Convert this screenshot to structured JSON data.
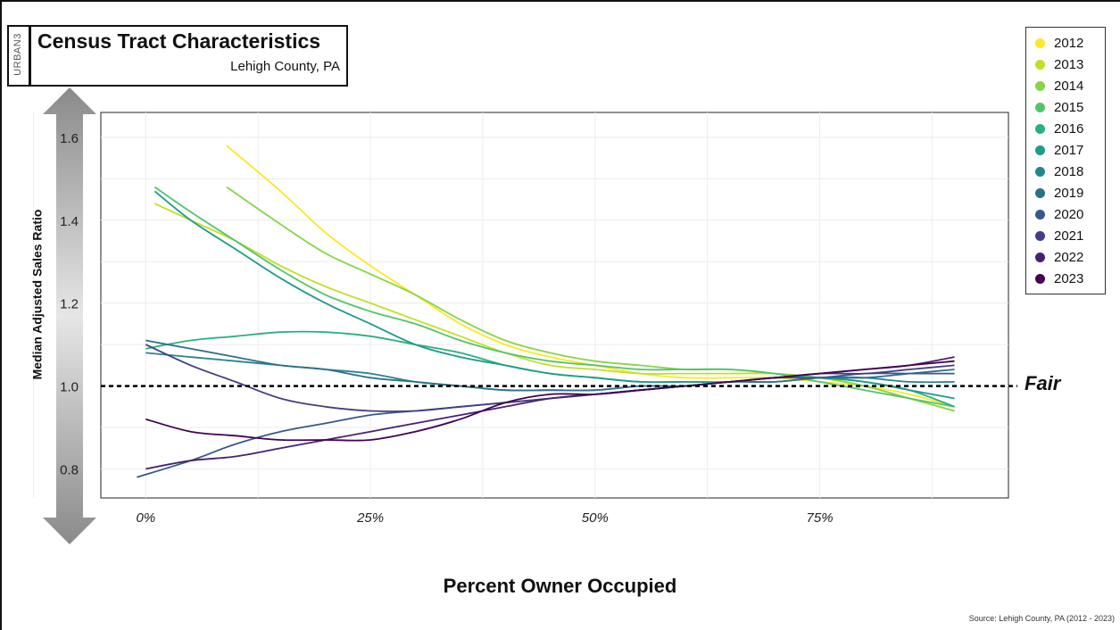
{
  "header": {
    "brand": "URBAN3",
    "title": "Census Tract Characteristics",
    "subtitle": "Lehigh County, PA"
  },
  "source": "Source: Lehigh County, PA (2012 - 2023)",
  "colors": {
    "2012": "#fde725",
    "2013": "#c2df23",
    "2014": "#86d549",
    "2015": "#52c569",
    "2016": "#2ab07f",
    "2017": "#1e9b8a",
    "2018": "#25858e",
    "2019": "#2d708e",
    "2020": "#38588c",
    "2021": "#433e85",
    "2022": "#482173",
    "2023": "#440154"
  },
  "chart_data": {
    "type": "line",
    "xlabel": "Percent Owner Occupied",
    "ylabel": "Median Adjusted Sales Ratio",
    "xlim": [
      -0.05,
      0.96
    ],
    "ylim": [
      0.73,
      1.66
    ],
    "xticks": [
      0,
      0.25,
      0.5,
      0.75
    ],
    "xtick_labels": [
      "0%",
      "25%",
      "50%",
      "75%"
    ],
    "yticks": [
      0.8,
      1.0,
      1.2,
      1.4,
      1.6
    ],
    "ytick_labels": [
      "0.8",
      "1.0",
      "1.2",
      "1.4",
      "1.6"
    ],
    "grid": true,
    "legend_position": "top-right",
    "reference_line": {
      "y": 1.0,
      "label": "Fair",
      "style": "dashed"
    },
    "series": [
      {
        "name": "2012",
        "x": [
          0.09,
          0.15,
          0.2,
          0.25,
          0.3,
          0.35,
          0.4,
          0.45,
          0.5,
          0.55,
          0.6,
          0.65,
          0.7,
          0.75,
          0.8,
          0.85,
          0.9
        ],
        "y": [
          1.58,
          1.47,
          1.37,
          1.29,
          1.22,
          1.15,
          1.1,
          1.07,
          1.05,
          1.03,
          1.02,
          1.02,
          1.02,
          1.01,
          1.0,
          0.98,
          0.95
        ]
      },
      {
        "name": "2013",
        "x": [
          0.01,
          0.05,
          0.1,
          0.15,
          0.2,
          0.25,
          0.3,
          0.35,
          0.4,
          0.45,
          0.5,
          0.55,
          0.6,
          0.65,
          0.7,
          0.75,
          0.8,
          0.85,
          0.9
        ],
        "y": [
          1.44,
          1.4,
          1.35,
          1.29,
          1.24,
          1.2,
          1.16,
          1.12,
          1.08,
          1.05,
          1.04,
          1.03,
          1.03,
          1.03,
          1.03,
          1.02,
          1.0,
          0.97,
          0.94
        ]
      },
      {
        "name": "2014",
        "x": [
          0.09,
          0.15,
          0.2,
          0.25,
          0.3,
          0.35,
          0.4,
          0.45,
          0.5,
          0.55,
          0.6,
          0.65,
          0.7,
          0.75,
          0.8,
          0.85,
          0.9
        ],
        "y": [
          1.48,
          1.39,
          1.32,
          1.27,
          1.22,
          1.16,
          1.11,
          1.08,
          1.06,
          1.05,
          1.04,
          1.04,
          1.03,
          1.02,
          1.0,
          0.97,
          0.94
        ]
      },
      {
        "name": "2015",
        "x": [
          0.01,
          0.05,
          0.1,
          0.15,
          0.2,
          0.25,
          0.3,
          0.35,
          0.4,
          0.45,
          0.5,
          0.55,
          0.6,
          0.65,
          0.7,
          0.75,
          0.8,
          0.85,
          0.9
        ],
        "y": [
          1.48,
          1.42,
          1.35,
          1.28,
          1.22,
          1.18,
          1.15,
          1.11,
          1.08,
          1.06,
          1.05,
          1.04,
          1.04,
          1.04,
          1.03,
          1.01,
          0.99,
          0.97,
          0.95
        ]
      },
      {
        "name": "2016",
        "x": [
          0.0,
          0.05,
          0.1,
          0.15,
          0.2,
          0.25,
          0.3,
          0.35,
          0.4,
          0.45,
          0.5,
          0.55,
          0.6,
          0.65,
          0.7,
          0.75,
          0.8,
          0.85,
          0.9
        ],
        "y": [
          1.09,
          1.11,
          1.12,
          1.13,
          1.13,
          1.12,
          1.1,
          1.08,
          1.05,
          1.03,
          1.02,
          1.01,
          1.01,
          1.01,
          1.02,
          1.02,
          1.01,
          0.99,
          0.95
        ]
      },
      {
        "name": "2017",
        "x": [
          0.01,
          0.05,
          0.1,
          0.15,
          0.2,
          0.25,
          0.3,
          0.35,
          0.4,
          0.45,
          0.5,
          0.55,
          0.6,
          0.65,
          0.7,
          0.75,
          0.8,
          0.85,
          0.9
        ],
        "y": [
          1.47,
          1.4,
          1.33,
          1.26,
          1.2,
          1.15,
          1.1,
          1.07,
          1.05,
          1.03,
          1.02,
          1.01,
          1.01,
          1.01,
          1.02,
          1.02,
          1.01,
          0.99,
          0.97
        ]
      },
      {
        "name": "2018",
        "x": [
          0.0,
          0.05,
          0.1,
          0.15,
          0.2,
          0.25,
          0.3,
          0.35,
          0.4,
          0.45,
          0.5,
          0.55,
          0.6,
          0.65,
          0.7,
          0.75,
          0.8,
          0.85,
          0.9
        ],
        "y": [
          1.08,
          1.07,
          1.06,
          1.05,
          1.04,
          1.03,
          1.01,
          1.0,
          0.99,
          0.99,
          0.99,
          1.0,
          1.0,
          1.01,
          1.01,
          1.02,
          1.02,
          1.01,
          1.01
        ]
      },
      {
        "name": "2019",
        "x": [
          0.0,
          0.05,
          0.1,
          0.15,
          0.2,
          0.25,
          0.3,
          0.35,
          0.4,
          0.45,
          0.5,
          0.55,
          0.6,
          0.65,
          0.7,
          0.75,
          0.8,
          0.85,
          0.9
        ],
        "y": [
          1.11,
          1.09,
          1.07,
          1.05,
          1.04,
          1.02,
          1.01,
          1.0,
          0.99,
          0.99,
          0.99,
          1.0,
          1.0,
          1.01,
          1.01,
          1.02,
          1.02,
          1.03,
          1.04
        ]
      },
      {
        "name": "2020",
        "x": [
          -0.01,
          0.05,
          0.1,
          0.15,
          0.2,
          0.25,
          0.3,
          0.35,
          0.4,
          0.45,
          0.5,
          0.55,
          0.6,
          0.65,
          0.7,
          0.75,
          0.8,
          0.85,
          0.9
        ],
        "y": [
          0.78,
          0.82,
          0.86,
          0.89,
          0.91,
          0.93,
          0.94,
          0.95,
          0.96,
          0.97,
          0.98,
          0.99,
          1.0,
          1.01,
          1.02,
          1.02,
          1.03,
          1.03,
          1.03
        ]
      },
      {
        "name": "2021",
        "x": [
          0.0,
          0.05,
          0.1,
          0.15,
          0.2,
          0.25,
          0.3,
          0.35,
          0.4,
          0.45,
          0.5,
          0.55,
          0.6,
          0.65,
          0.7,
          0.75,
          0.8,
          0.85,
          0.9
        ],
        "y": [
          1.1,
          1.05,
          1.01,
          0.97,
          0.95,
          0.94,
          0.94,
          0.95,
          0.96,
          0.97,
          0.98,
          0.99,
          1.0,
          1.01,
          1.02,
          1.03,
          1.03,
          1.04,
          1.05
        ]
      },
      {
        "name": "2022",
        "x": [
          0.0,
          0.05,
          0.1,
          0.15,
          0.2,
          0.25,
          0.3,
          0.35,
          0.4,
          0.45,
          0.5,
          0.55,
          0.6,
          0.65,
          0.7,
          0.75,
          0.8,
          0.85,
          0.9
        ],
        "y": [
          0.8,
          0.82,
          0.83,
          0.85,
          0.87,
          0.89,
          0.91,
          0.93,
          0.95,
          0.97,
          0.98,
          0.99,
          1.0,
          1.01,
          1.02,
          1.03,
          1.04,
          1.05,
          1.07
        ]
      },
      {
        "name": "2023",
        "x": [
          0.0,
          0.05,
          0.1,
          0.15,
          0.2,
          0.25,
          0.3,
          0.35,
          0.4,
          0.45,
          0.5,
          0.55,
          0.6,
          0.65,
          0.7,
          0.75,
          0.8,
          0.85,
          0.9
        ],
        "y": [
          0.92,
          0.89,
          0.88,
          0.87,
          0.87,
          0.87,
          0.89,
          0.92,
          0.96,
          0.98,
          0.98,
          0.99,
          1.0,
          1.01,
          1.02,
          1.03,
          1.04,
          1.05,
          1.06
        ]
      }
    ]
  }
}
